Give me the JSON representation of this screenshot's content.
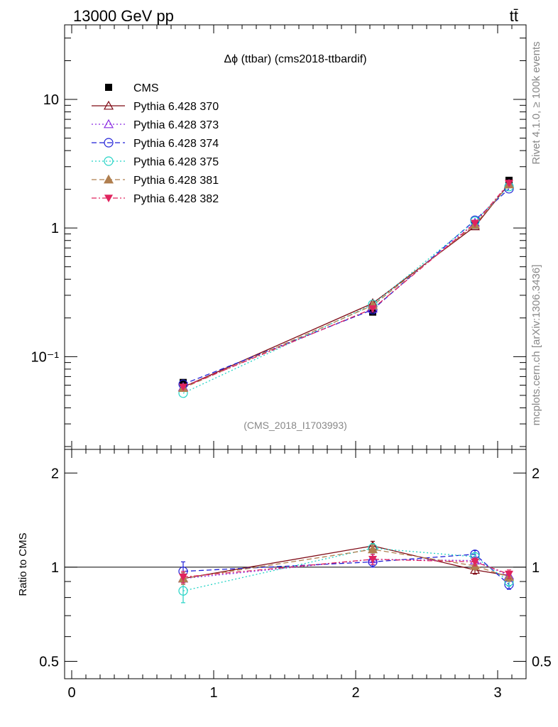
{
  "header": {
    "energy_label": "13000 GeV pp",
    "process_label": "tt̄"
  },
  "side": {
    "rivet_label": "Rivet 4.1.0, ≥ 100k events",
    "mcplots_label": "mcplots.cern.ch [arXiv:1306.3436]"
  },
  "colors": {
    "axis": "#000000",
    "watermark": "#888888",
    "side_text": "#888888"
  },
  "chart_data": {
    "type": "line",
    "title": "Δϕ (ttbar) (cms2018-ttbardif)",
    "watermark": "(CMS_2018_I1703993)",
    "xlabel": "",
    "ylabel_main": "",
    "ylabel_ratio": "Ratio to CMS",
    "xlim": [
      -0.05,
      3.2
    ],
    "ylim_main": [
      0.019,
      38
    ],
    "ylim_ratio": [
      0.44,
      2.38
    ],
    "y_scale": "log",
    "x_ticks": [
      0,
      1,
      2,
      3
    ],
    "x_tick_labels": [
      "0",
      "1",
      "2",
      "3"
    ],
    "y_ticks_main": [
      0.1,
      1,
      10
    ],
    "y_tick_labels_main": [
      "10⁻¹",
      "1",
      "10"
    ],
    "y_ticks_ratio": [
      0.5,
      1,
      2
    ],
    "y_tick_labels_ratio": [
      "0.5",
      "1",
      "2"
    ],
    "legend_position": "top-left",
    "x": [
      0.785,
      2.12,
      2.84,
      3.08
    ],
    "data": {
      "name": "CMS",
      "color": "#000000",
      "marker": "square",
      "values": [
        0.063,
        0.222,
        1.05,
        2.35
      ]
    },
    "series": [
      {
        "name": "Pythia 6.428 370",
        "color": "#7f0a15",
        "dash": "",
        "marker": "triangle-open",
        "values": [
          0.058,
          0.26,
          1.03,
          2.2
        ],
        "ratio": [
          0.92,
          1.17,
          0.98,
          0.94
        ],
        "ratio_err": [
          0.04,
          0.04,
          0.03,
          0.03
        ]
      },
      {
        "name": "Pythia 6.428 373",
        "color": "#8a2be2",
        "dash": "2,3",
        "marker": "triangle-open",
        "values": [
          0.058,
          0.236,
          1.1,
          2.2
        ],
        "ratio": [
          0.92,
          1.06,
          1.05,
          0.94
        ],
        "ratio_err": [
          0.04,
          0.04,
          0.03,
          0.03
        ]
      },
      {
        "name": "Pythia 6.428 374",
        "color": "#1f1fd6",
        "dash": "7,4",
        "marker": "circle-open",
        "values": [
          0.061,
          0.232,
          1.15,
          2.02
        ],
        "ratio": [
          0.97,
          1.04,
          1.1,
          0.88
        ],
        "ratio_err": [
          0.07,
          0.04,
          0.03,
          0.03
        ]
      },
      {
        "name": "Pythia 6.428 375",
        "color": "#22d3c5",
        "dash": "2,3",
        "marker": "circle-open",
        "values": [
          0.052,
          0.255,
          1.13,
          2.1
        ],
        "ratio": [
          0.84,
          1.15,
          1.08,
          0.9
        ],
        "ratio_err": [
          0.07,
          0.04,
          0.03,
          0.03
        ]
      },
      {
        "name": "Pythia 6.428 381",
        "color": "#b07f4f",
        "dash": "7,4",
        "marker": "triangle-filled",
        "values": [
          0.057,
          0.25,
          1.06,
          2.18
        ],
        "ratio": [
          0.92,
          1.14,
          1.01,
          0.93
        ],
        "ratio_err": [
          0.04,
          0.04,
          0.03,
          0.03
        ]
      },
      {
        "name": "Pythia 6.428 382",
        "color": "#e0245e",
        "dash": "7,3,2,3",
        "marker": "triangle-down-filled",
        "values": [
          0.058,
          0.236,
          1.09,
          2.23
        ],
        "ratio": [
          0.93,
          1.06,
          1.04,
          0.95
        ],
        "ratio_err": [
          0.04,
          0.04,
          0.03,
          0.03
        ]
      }
    ]
  }
}
